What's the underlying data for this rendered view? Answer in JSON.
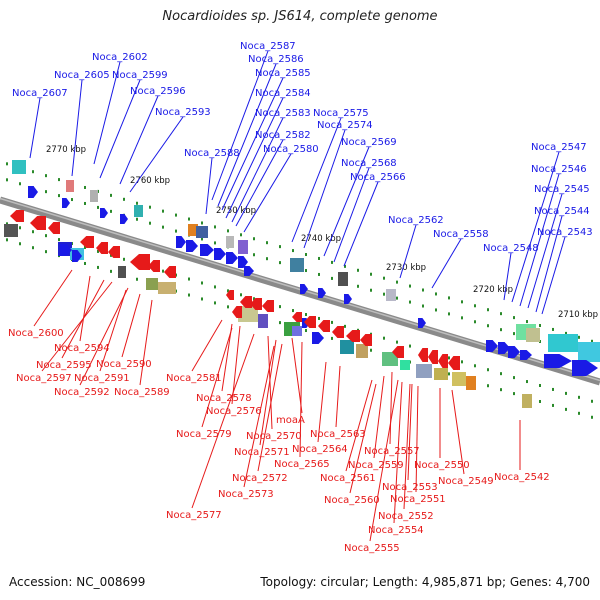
{
  "title": "Nocardioides sp. JS614, complete genome",
  "accession": "Accession: NC_008699",
  "topology": "Topology: circular; Length: 4,985,871 bp; Genes: 4,700",
  "colors": {
    "forward": "#1a1ae6",
    "reverse": "#e61a1a",
    "backbone": "#8a8a8a",
    "tick": "#2a8a2a"
  },
  "scale_labels": [
    "2770 kbp",
    "2760 kbp",
    "2750 kbp",
    "2740 kbp",
    "2730 kbp",
    "2720 kbp",
    "2710 kbp"
  ],
  "top_labels": [
    "Noca_2602",
    "Noca_2605",
    "Noca_2599",
    "Noca_2607",
    "Noca_2596",
    "Noca_2593",
    "Noca_2587",
    "Noca_2586",
    "Noca_2585",
    "Noca_2584",
    "Noca_2583",
    "Noca_2582",
    "Noca_2580",
    "Noca_2588",
    "Noca_2575",
    "Noca_2574",
    "Noca_2569",
    "Noca_2568",
    "Noca_2566",
    "Noca_2562",
    "Noca_2558",
    "Noca_2548",
    "Noca_2547",
    "Noca_2546",
    "Noca_2545",
    "Noca_2544",
    "Noca_2543"
  ],
  "bottom_labels": [
    "Noca_2600",
    "Noca_2594",
    "Noca_2595",
    "Noca_2597",
    "Noca_2591",
    "Noca_2590",
    "Noca_2592",
    "Noca_2589",
    "Noca_2581",
    "Noca_2578",
    "Noca_2576",
    "Noca_2579",
    "Noca_2570",
    "moaA",
    "Noca_2563",
    "Noca_2564",
    "Noca_2571",
    "Noca_2565",
    "Noca_2572",
    "Noca_2573",
    "Noca_2577",
    "Noca_2557",
    "Noca_2559",
    "Noca_2561",
    "Noca_2560",
    "Noca_2553",
    "Noca_2551",
    "Noca_2552",
    "Noca_2554",
    "Noca_2555",
    "Noca_2550",
    "Noca_2549",
    "Noca_2542"
  ]
}
